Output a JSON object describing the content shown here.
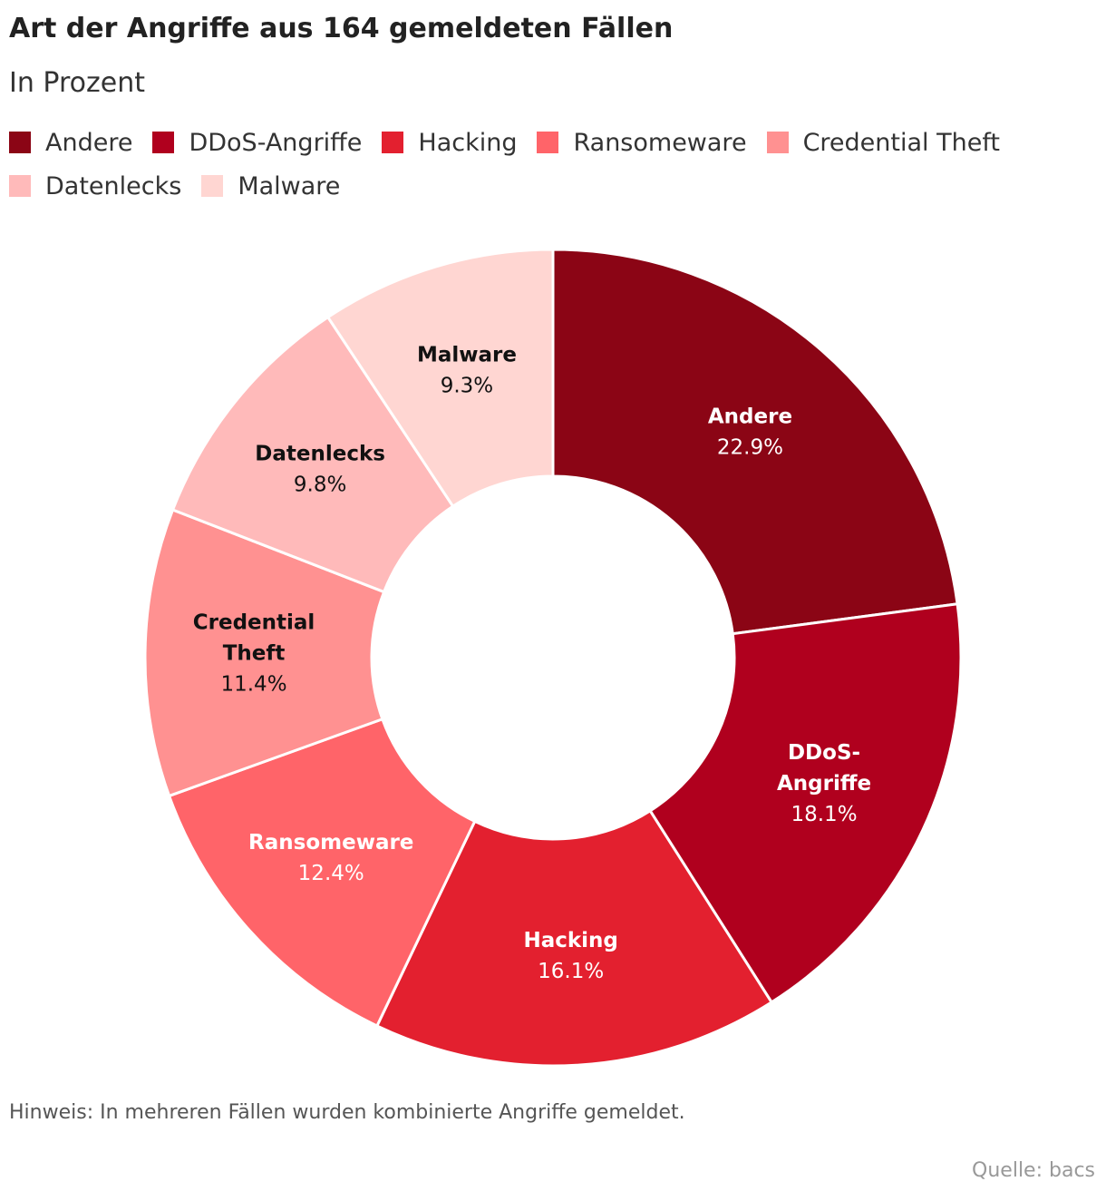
{
  "chart_data": {
    "type": "pie",
    "title": "Art der Angriffe aus 164 gemeldeten Fällen",
    "subtitle": "In Prozent",
    "donut": true,
    "legend_position": "top-left",
    "series": [
      {
        "name": "Andere",
        "label_lines": [
          "Andere"
        ],
        "value": 22.9,
        "value_label": "22.9%",
        "color": "#8b0515",
        "label_color": "#ffffff"
      },
      {
        "name": "DDoS-Angriffe",
        "label_lines": [
          "DDoS-",
          "Angriffe"
        ],
        "value": 18.1,
        "value_label": "18.1%",
        "color": "#b0001e",
        "label_color": "#ffffff"
      },
      {
        "name": "Hacking",
        "label_lines": [
          "Hacking"
        ],
        "value": 16.1,
        "value_label": "16.1%",
        "color": "#e3202f",
        "label_color": "#ffffff"
      },
      {
        "name": "Ransomeware",
        "label_lines": [
          "Ransomeware"
        ],
        "value": 12.4,
        "value_label": "12.4%",
        "color": "#ff6469",
        "label_color": "#ffffff"
      },
      {
        "name": "Credential Theft",
        "label_lines": [
          "Credential",
          "Theft"
        ],
        "value": 11.4,
        "value_label": "11.4%",
        "color": "#ff9191",
        "label_color": "#111111"
      },
      {
        "name": "Datenlecks",
        "label_lines": [
          "Datenlecks"
        ],
        "value": 9.8,
        "value_label": "9.8%",
        "color": "#ffbaba",
        "label_color": "#111111"
      },
      {
        "name": "Malware",
        "label_lines": [
          "Malware"
        ],
        "value": 9.3,
        "value_label": "9.3%",
        "color": "#ffd6d2",
        "label_color": "#111111"
      }
    ]
  },
  "footer": {
    "note": "Hinweis: In mehreren Fällen wurden kombinierte Angriffe gemeldet.",
    "source": "Quelle: bacs"
  }
}
